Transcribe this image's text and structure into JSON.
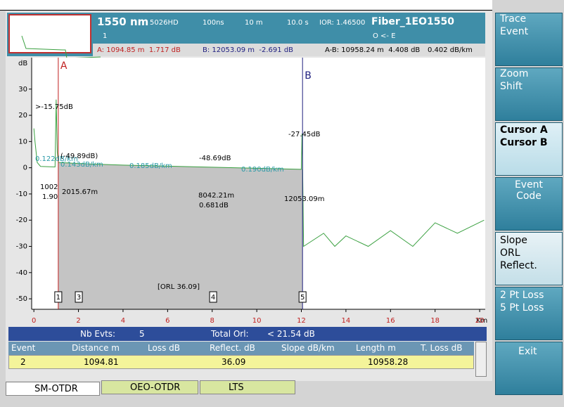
{
  "header": {
    "wavelength": "1550 nm",
    "module": "5026HD",
    "pulse": "100ns",
    "resolution": "10 m",
    "time": "10.0 s",
    "ior": "IOR: 1.46500",
    "fiber": "Fiber_1EO1550",
    "trace_no": "1",
    "direction": "O <- E",
    "cursor_a": "A: 1094.85 m  1.717 dB",
    "cursor_b": "B: 12053.09 m  -2.691 dB",
    "ab": "A-B: 10958.24 m  4.408 dB",
    "ab_slope": "0.402 dB/km"
  },
  "chart": {
    "type": "line",
    "y_unit": "dB",
    "x_unit": "Km",
    "xlim": [
      -0.1,
      20.25
    ],
    "ylim": [
      -54,
      42
    ],
    "xticks": [
      0,
      2,
      4,
      6,
      8,
      10,
      12,
      14,
      16,
      18,
      20
    ],
    "yticks": [
      -50,
      -40,
      -30,
      -20,
      -10,
      0,
      10,
      20,
      30
    ],
    "trace": {
      "color": "#3aa040",
      "x": [
        0,
        0.05,
        0.15,
        0.3,
        0.6,
        0.95,
        1.0,
        1.05,
        1.1,
        2,
        4,
        6,
        8,
        10,
        12,
        12.03,
        12.06,
        12.1,
        13,
        13.5,
        14,
        15,
        16,
        17,
        18,
        19,
        20.2
      ],
      "values": [
        15,
        10,
        2,
        0.5,
        0.4,
        0.3,
        26,
        6,
        2,
        1.6,
        1,
        0.6,
        0.2,
        -0.2,
        -0.6,
        13,
        -2,
        -30,
        -25,
        -30,
        -26,
        -30,
        -24,
        -30,
        -21,
        -25,
        -20
      ]
    },
    "cursors": [
      {
        "label": "A",
        "x": 1.09485
      },
      {
        "label": "B",
        "x": 12.05309
      }
    ],
    "events": [
      {
        "label": "1",
        "x": 1.0948
      },
      {
        "label": "3",
        "x": 2.01567
      },
      {
        "label": "4",
        "x": 8.04221
      },
      {
        "label": "5",
        "x": 12.05309
      }
    ],
    "annotations": [
      ">-15.75dB",
      "0.122dB/km",
      "(-49.89dB)",
      "0.143dB/km",
      "0.185dB/km",
      "-48.69dB",
      "0.190dB/km",
      "-27.45dB",
      "1002",
      "1.90",
      "2015.67m",
      "8042.21m",
      "0.681dB",
      "12053.09m",
      "[ORL   36.09]"
    ]
  },
  "summary": {
    "nb_label": "Nb Evts:",
    "nb": "5",
    "orl_label": "Total Orl:",
    "orl": "< 21.54 dB"
  },
  "table": {
    "columns": [
      "Event",
      "Distance m",
      "Loss dB",
      "Reflect. dB",
      "Slope dB/km",
      "Length m",
      "T. Loss dB"
    ],
    "row": [
      "2",
      "1094.81",
      "",
      "36.09",
      "",
      "10958.28",
      ""
    ]
  },
  "tabs": [
    "SM-OTDR",
    "OEO-OTDR",
    "LTS"
  ],
  "buttons": {
    "trace": "Trace",
    "event": "Event",
    "zoom": "Zoom",
    "shift": "Shift",
    "cursor_a": "Cursor A",
    "cursor_b": "Cursor B",
    "event_code": "Event Code",
    "slope": "Slope",
    "orl": "ORL",
    "reflect": "Reflect.",
    "pt2": "2 Pt Loss",
    "pt5": "5 Pt Loss",
    "exit": "Exit"
  }
}
